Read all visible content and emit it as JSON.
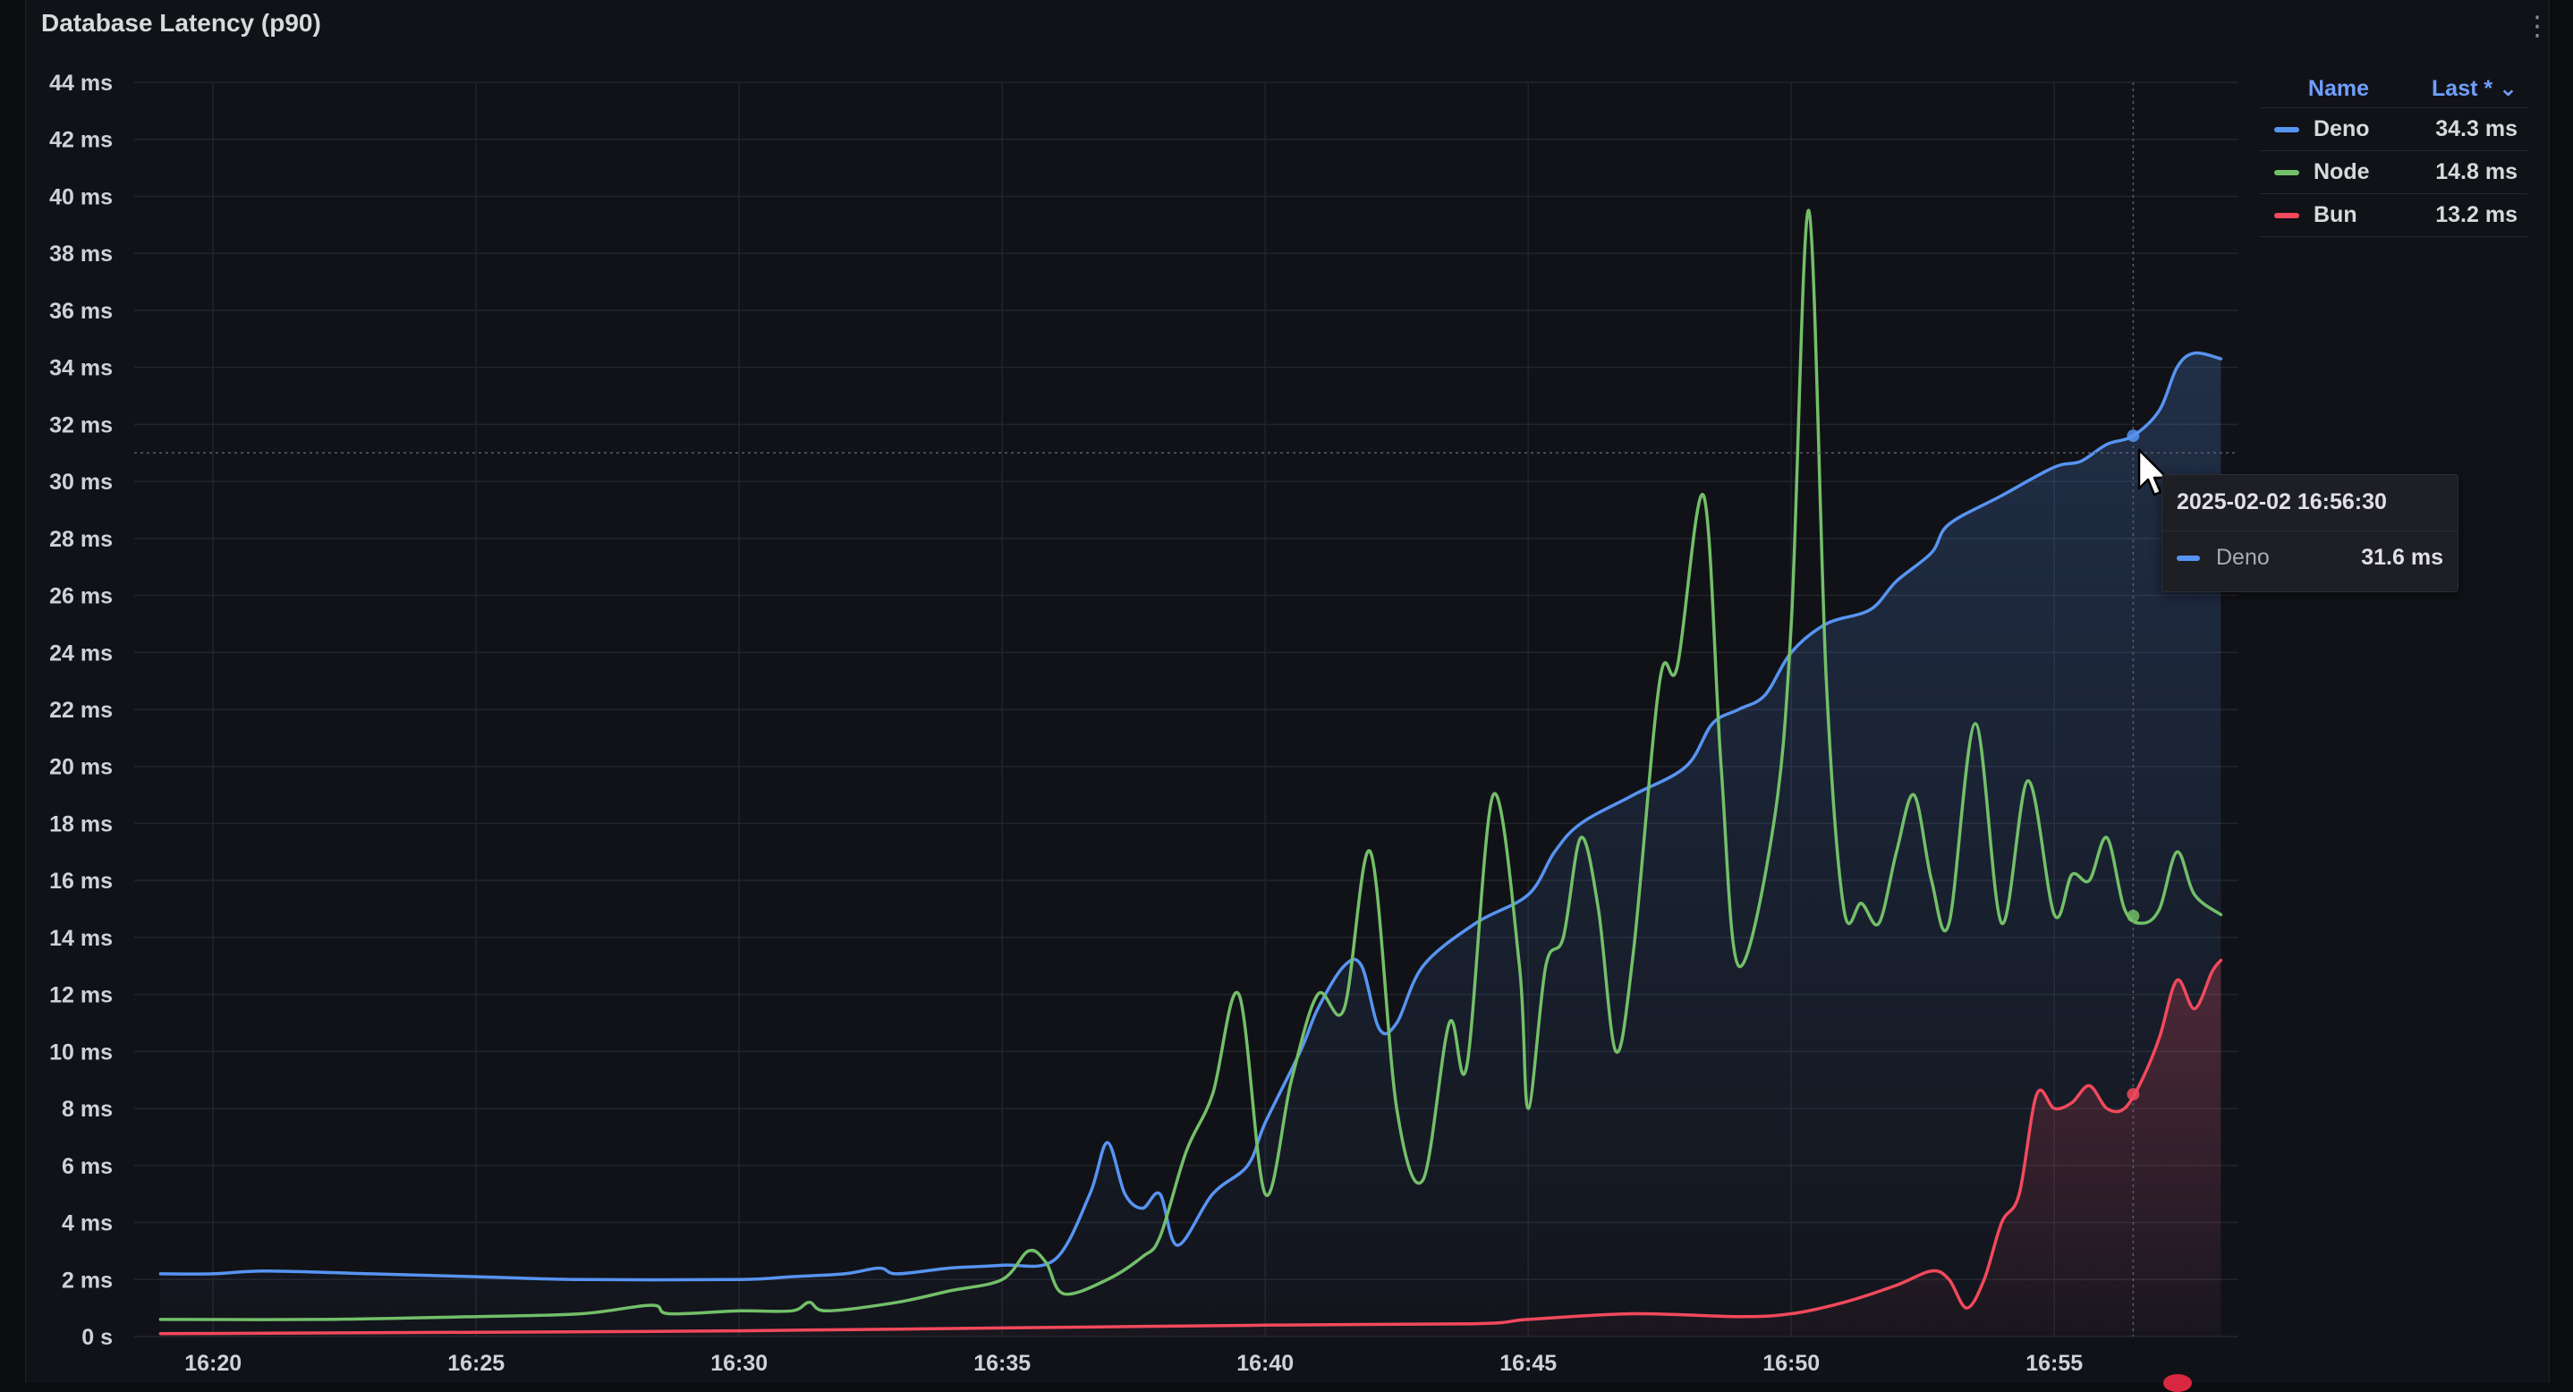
{
  "panel": {
    "title": "Database Latency (p90)",
    "menu_icon": "more-vertical-icon"
  },
  "legend": {
    "header_name": "Name",
    "header_last": "Last * ⌄",
    "items": [
      {
        "name": "Deno",
        "last": "34.3 ms",
        "color": "#5794f2"
      },
      {
        "name": "Node",
        "last": "14.8 ms",
        "color": "#73bf69"
      },
      {
        "name": "Bun",
        "last": "13.2 ms",
        "color": "#f2495c"
      }
    ]
  },
  "tooltip": {
    "time": "2025-02-02 16:56:30",
    "series": "Deno",
    "value": "31.6 ms",
    "color": "#5794f2"
  },
  "colors": {
    "background": "#111217",
    "grid": "#24262b",
    "text": "#ccccdc",
    "accent": "#6e9fff"
  },
  "chart_data": {
    "type": "line",
    "title": "Database Latency (p90)",
    "xlabel": "",
    "ylabel": "",
    "x_unit": "time (minutes, 2025-02-02)",
    "y_unit": "ms",
    "ylim": [
      0,
      44
    ],
    "xlim": [
      "16:18:30",
      "16:58:30"
    ],
    "y_ticks": [
      "0 s",
      "2 ms",
      "4 ms",
      "6 ms",
      "8 ms",
      "10 ms",
      "12 ms",
      "14 ms",
      "16 ms",
      "18 ms",
      "20 ms",
      "22 ms",
      "24 ms",
      "26 ms",
      "28 ms",
      "30 ms",
      "32 ms",
      "34 ms",
      "36 ms",
      "38 ms",
      "40 ms",
      "42 ms",
      "44 ms"
    ],
    "x_ticks": [
      "16:20",
      "16:25",
      "16:30",
      "16:35",
      "16:40",
      "16:45",
      "16:50",
      "16:55"
    ],
    "grid": true,
    "legend": "right",
    "series": [
      {
        "name": "Deno",
        "color": "#5794f2",
        "fill": true,
        "points": [
          [
            "16:19:00",
            2.2
          ],
          [
            "16:20:00",
            2.2
          ],
          [
            "16:21:00",
            2.3
          ],
          [
            "16:23:00",
            2.2
          ],
          [
            "16:25:00",
            2.1
          ],
          [
            "16:27:00",
            2.0
          ],
          [
            "16:30:00",
            2.0
          ],
          [
            "16:31:00",
            2.1
          ],
          [
            "16:32:00",
            2.2
          ],
          [
            "16:32:40",
            2.4
          ],
          [
            "16:33:00",
            2.2
          ],
          [
            "16:34:00",
            2.4
          ],
          [
            "16:35:00",
            2.5
          ],
          [
            "16:36:00",
            2.7
          ],
          [
            "16:36:40",
            5.0
          ],
          [
            "16:37:00",
            6.8
          ],
          [
            "16:37:20",
            5.0
          ],
          [
            "16:37:40",
            4.5
          ],
          [
            "16:38:00",
            5.0
          ],
          [
            "16:38:20",
            3.2
          ],
          [
            "16:39:00",
            5.0
          ],
          [
            "16:39:40",
            6.0
          ],
          [
            "16:40:00",
            7.5
          ],
          [
            "16:40:40",
            10.0
          ],
          [
            "16:41:00",
            11.5
          ],
          [
            "16:41:30",
            13.0
          ],
          [
            "16:41:50",
            13.0
          ],
          [
            "16:42:10",
            10.8
          ],
          [
            "16:42:30",
            11.0
          ],
          [
            "16:43:00",
            13.0
          ],
          [
            "16:44:00",
            14.5
          ],
          [
            "16:45:00",
            15.5
          ],
          [
            "16:45:30",
            17.0
          ],
          [
            "16:46:00",
            18.0
          ],
          [
            "16:47:00",
            19.0
          ],
          [
            "16:48:00",
            20.0
          ],
          [
            "16:48:30",
            21.5
          ],
          [
            "16:49:00",
            22.0
          ],
          [
            "16:49:30",
            22.5
          ],
          [
            "16:50:00",
            24.0
          ],
          [
            "16:50:40",
            25.0
          ],
          [
            "16:51:30",
            25.5
          ],
          [
            "16:52:00",
            26.5
          ],
          [
            "16:52:40",
            27.5
          ],
          [
            "16:53:00",
            28.5
          ],
          [
            "16:54:00",
            29.5
          ],
          [
            "16:55:00",
            30.5
          ],
          [
            "16:55:30",
            30.7
          ],
          [
            "16:56:00",
            31.3
          ],
          [
            "16:56:30",
            31.6
          ],
          [
            "16:57:00",
            32.5
          ],
          [
            "16:57:20",
            34.0
          ],
          [
            "16:57:40",
            34.5
          ],
          [
            "16:58:10",
            34.3
          ]
        ]
      },
      {
        "name": "Node",
        "color": "#73bf69",
        "fill": false,
        "points": [
          [
            "16:19:00",
            0.6
          ],
          [
            "16:22:00",
            0.6
          ],
          [
            "16:25:00",
            0.7
          ],
          [
            "16:27:00",
            0.8
          ],
          [
            "16:28:20",
            1.1
          ],
          [
            "16:28:40",
            0.8
          ],
          [
            "16:30:00",
            0.9
          ],
          [
            "16:31:00",
            0.9
          ],
          [
            "16:31:20",
            1.2
          ],
          [
            "16:31:40",
            0.9
          ],
          [
            "16:33:00",
            1.2
          ],
          [
            "16:34:00",
            1.6
          ],
          [
            "16:35:00",
            2.0
          ],
          [
            "16:35:30",
            3.0
          ],
          [
            "16:35:50",
            2.6
          ],
          [
            "16:36:10",
            1.5
          ],
          [
            "16:37:00",
            2.0
          ],
          [
            "16:37:40",
            2.8
          ],
          [
            "16:38:00",
            3.5
          ],
          [
            "16:38:30",
            6.5
          ],
          [
            "16:39:00",
            8.5
          ],
          [
            "16:39:30",
            12.0
          ],
          [
            "16:40:00",
            5.0
          ],
          [
            "16:40:30",
            9.0
          ],
          [
            "16:41:00",
            12.0
          ],
          [
            "16:41:30",
            11.5
          ],
          [
            "16:42:00",
            17.0
          ],
          [
            "16:42:30",
            8.0
          ],
          [
            "16:43:00",
            5.5
          ],
          [
            "16:43:30",
            11.0
          ],
          [
            "16:43:50",
            9.5
          ],
          [
            "16:44:20",
            19.0
          ],
          [
            "16:44:50",
            13.0
          ],
          [
            "16:45:00",
            8.0
          ],
          [
            "16:45:20",
            13.0
          ],
          [
            "16:45:40",
            14.0
          ],
          [
            "16:46:00",
            17.5
          ],
          [
            "16:46:20",
            15.0
          ],
          [
            "16:46:40",
            10.0
          ],
          [
            "16:47:00",
            13.5
          ],
          [
            "16:47:30",
            23.0
          ],
          [
            "16:47:50",
            23.5
          ],
          [
            "16:48:20",
            29.5
          ],
          [
            "16:48:40",
            20.0
          ],
          [
            "16:49:00",
            13.0
          ],
          [
            "16:49:40",
            18.0
          ],
          [
            "16:50:00",
            25.0
          ],
          [
            "16:50:20",
            39.5
          ],
          [
            "16:50:40",
            23.0
          ],
          [
            "16:51:00",
            15.0
          ],
          [
            "16:51:20",
            15.2
          ],
          [
            "16:51:40",
            14.5
          ],
          [
            "16:52:00",
            17.0
          ],
          [
            "16:52:20",
            19.0
          ],
          [
            "16:52:40",
            16.0
          ],
          [
            "16:53:00",
            14.5
          ],
          [
            "16:53:30",
            21.5
          ],
          [
            "16:54:00",
            14.5
          ],
          [
            "16:54:30",
            19.5
          ],
          [
            "16:55:00",
            14.8
          ],
          [
            "16:55:20",
            16.2
          ],
          [
            "16:55:40",
            16.0
          ],
          [
            "16:56:00",
            17.5
          ],
          [
            "16:56:20",
            15.0
          ],
          [
            "16:56:40",
            14.5
          ],
          [
            "16:57:00",
            15.0
          ],
          [
            "16:57:20",
            17.0
          ],
          [
            "16:57:40",
            15.5
          ],
          [
            "16:58:10",
            14.8
          ]
        ]
      },
      {
        "name": "Bun",
        "color": "#f2495c",
        "fill": true,
        "points": [
          [
            "16:19:00",
            0.1
          ],
          [
            "16:25:00",
            0.15
          ],
          [
            "16:30:00",
            0.2
          ],
          [
            "16:35:00",
            0.3
          ],
          [
            "16:40:00",
            0.4
          ],
          [
            "16:44:00",
            0.45
          ],
          [
            "16:45:00",
            0.6
          ],
          [
            "16:47:00",
            0.8
          ],
          [
            "16:49:00",
            0.7
          ],
          [
            "16:50:00",
            0.8
          ],
          [
            "16:51:00",
            1.2
          ],
          [
            "16:52:00",
            1.8
          ],
          [
            "16:52:40",
            2.3
          ],
          [
            "16:53:00",
            2.0
          ],
          [
            "16:53:20",
            1.0
          ],
          [
            "16:53:40",
            2.0
          ],
          [
            "16:54:00",
            4.0
          ],
          [
            "16:54:20",
            5.0
          ],
          [
            "16:54:40",
            8.5
          ],
          [
            "16:55:00",
            8.0
          ],
          [
            "16:55:20",
            8.2
          ],
          [
            "16:55:40",
            8.8
          ],
          [
            "16:56:00",
            8.0
          ],
          [
            "16:56:20",
            8.0
          ],
          [
            "16:56:40",
            9.0
          ],
          [
            "16:57:00",
            10.5
          ],
          [
            "16:57:20",
            12.5
          ],
          [
            "16:57:40",
            11.5
          ],
          [
            "16:58:00",
            12.8
          ],
          [
            "16:58:10",
            13.2
          ]
        ]
      }
    ],
    "hover": {
      "time": "16:56:30",
      "crosshair_y": 31.0
    }
  }
}
